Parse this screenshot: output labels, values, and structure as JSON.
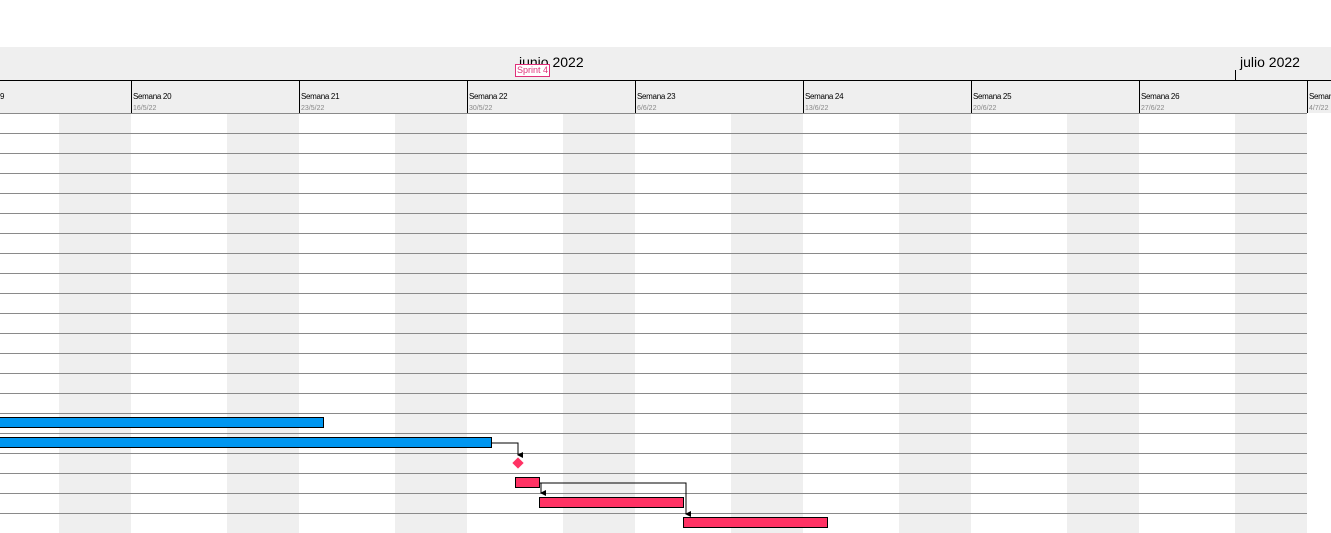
{
  "timeline": {
    "months": [
      {
        "label": "junio 2022"
      },
      {
        "label": "julio 2022"
      }
    ],
    "weeks": [
      {
        "label": "9",
        "date": ""
      },
      {
        "label": "Semana 20",
        "date": "16/5/22"
      },
      {
        "label": "Semana 21",
        "date": "23/5/22"
      },
      {
        "label": "Semana 22",
        "date": "30/5/22"
      },
      {
        "label": "Semana 23",
        "date": "6/6/22"
      },
      {
        "label": "Semana 24",
        "date": "13/6/22"
      },
      {
        "label": "Semana 25",
        "date": "20/6/22"
      },
      {
        "label": "Semana 26",
        "date": "27/6/22"
      },
      {
        "label": "Semana",
        "date": "4/7/22"
      }
    ],
    "marker": {
      "label": "Sprint 4",
      "color": "#e0307a"
    }
  },
  "tasks": [
    {
      "kind": "bar",
      "row": 15,
      "start": "before view",
      "end": "24/5/22",
      "color": "#0096f0"
    },
    {
      "kind": "bar",
      "row": 16,
      "start": "before view",
      "end": "31/5/22",
      "color": "#0096f0"
    },
    {
      "kind": "milestone",
      "row": 17,
      "date": "1/6/22",
      "color": "#ff3264"
    },
    {
      "kind": "bar",
      "row": 18,
      "start": "1/6/22",
      "end": "2/6/22",
      "color": "#ff3264"
    },
    {
      "kind": "bar",
      "row": 19,
      "start": "2/6/22",
      "end": "8/6/22",
      "color": "#ff3264"
    },
    {
      "kind": "bar",
      "row": 20,
      "start": "8/6/22",
      "end": "14/6/22",
      "color": "#ff3264"
    }
  ],
  "colors": {
    "weekend": "#efefef",
    "grid": "#8a8a8a",
    "header": "#efefef"
  }
}
